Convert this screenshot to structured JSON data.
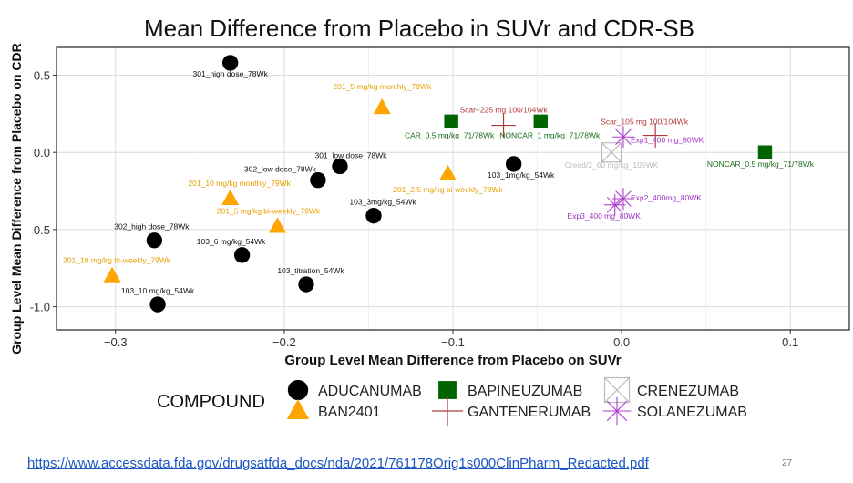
{
  "slide": {
    "url": "https://www.accessdata.fda.gov/drugsatfda_docs/nda/2021/761178Orig1s000ClinPharm_Redacted.pdf",
    "page_number": "27"
  },
  "chart_data": {
    "type": "scatter",
    "title": "Mean Difference from Placebo in SUVr and CDR-SB",
    "xlabel": "Group Level Mean Difference from Placebo on SUVr",
    "ylabel": "Group Level Mean Difference from Placebo on CDR",
    "xlim": [
      -0.335,
      0.135
    ],
    "ylim": [
      -1.15,
      0.68
    ],
    "x_ticks": [
      -0.3,
      -0.2,
      -0.1,
      0.0,
      0.1
    ],
    "x_tick_labels": [
      "−0.3",
      "−0.2",
      "−0.1",
      "0.0",
      "0.1"
    ],
    "y_ticks": [
      0.5,
      0.0,
      -0.5,
      -1.0
    ],
    "y_tick_labels": [
      "0.5",
      "0.0",
      "-0.5",
      "-1.0"
    ],
    "grid": true,
    "legend": {
      "title": "COMPOUND",
      "placement": "bottom",
      "entries": [
        {
          "name": "ADUCANUMAB",
          "shape": "circle",
          "color": "#000000"
        },
        {
          "name": "BAN2401",
          "shape": "triangle",
          "color": "#FFA500"
        },
        {
          "name": "BAPINEUZUMAB",
          "shape": "square",
          "color": "#006400"
        },
        {
          "name": "GANTENERUMAB",
          "shape": "plus",
          "color": "#B03A3A"
        },
        {
          "name": "CRENEZUMAB",
          "shape": "boxx",
          "color": "#BBBBBB"
        },
        {
          "name": "SOLANEZUMAB",
          "shape": "star",
          "color": "#B040D0"
        }
      ]
    },
    "series": [
      {
        "name": "ADUCANUMAB",
        "shape": "circle",
        "color": "#000000",
        "label_color": "#111111",
        "points": [
          {
            "x": -0.232,
            "y": 0.58,
            "label": "301_high dose_78Wk",
            "anchor": "middle",
            "dx": 0,
            "dy": 15
          },
          {
            "x": -0.167,
            "y": -0.09,
            "label": "301_low dose_78Wk",
            "anchor": "middle",
            "dx": 12,
            "dy": -9
          },
          {
            "x": -0.18,
            "y": -0.18,
            "label": "302_low dose_78Wk",
            "anchor": "end",
            "dx": -2,
            "dy": -9
          },
          {
            "x": -0.147,
            "y": -0.41,
            "label": "103_3mg/kg_54Wk",
            "anchor": "middle",
            "dx": 10,
            "dy": -12
          },
          {
            "x": -0.064,
            "y": -0.075,
            "label": "103_1mg/kg_54Wk",
            "anchor": "middle",
            "dx": 8,
            "dy": 15
          },
          {
            "x": -0.277,
            "y": -0.57,
            "label": "302_high dose_78Wk",
            "anchor": "middle",
            "dx": -3,
            "dy": -12
          },
          {
            "x": -0.225,
            "y": -0.665,
            "label": "103_6 mg/kg_54Wk",
            "anchor": "middle",
            "dx": -12,
            "dy": -12
          },
          {
            "x": -0.187,
            "y": -0.855,
            "label": "103_titration_54Wk",
            "anchor": "middle",
            "dx": 5,
            "dy": -12
          },
          {
            "x": -0.275,
            "y": -0.985,
            "label": "103_10 mg/kg_54Wk",
            "anchor": "middle",
            "dx": 0,
            "dy": -12
          }
        ]
      },
      {
        "name": "BAN2401",
        "shape": "triangle",
        "color": "#FFA500",
        "label_color": "#E8A000",
        "points": [
          {
            "x": -0.142,
            "y": 0.29,
            "label": "201_5 mg/kg monthly_78Wk",
            "anchor": "middle",
            "dx": 0,
            "dy": -20
          },
          {
            "x": -0.103,
            "y": -0.14,
            "label": "201_2.5 mg/kg bi-weekly_78Wk",
            "anchor": "middle",
            "dx": 0,
            "dy": 20
          },
          {
            "x": -0.232,
            "y": -0.3,
            "label": "201_10 mg/kg monthly_79Wk",
            "anchor": "middle",
            "dx": 10,
            "dy": -14
          },
          {
            "x": -0.204,
            "y": -0.48,
            "label": "201_5 mg/kg bi-weekly_79Wk",
            "anchor": "middle",
            "dx": -10,
            "dy": -14
          },
          {
            "x": -0.302,
            "y": -0.8,
            "label": "201_10 mg/kg bi-weekly_79Wk",
            "anchor": "middle",
            "dx": 5,
            "dy": -14
          }
        ]
      },
      {
        "name": "BAPINEUZUMAB",
        "shape": "square",
        "color": "#006400",
        "label_color": "#1A6B1A",
        "points": [
          {
            "x": -0.101,
            "y": 0.2,
            "label": "CAR_0.5 mg/kg_71/78Wk",
            "anchor": "middle",
            "dx": -2,
            "dy": 18
          },
          {
            "x": -0.048,
            "y": 0.2,
            "label": "NONCAR_1 mg/kg_71/78Wk",
            "anchor": "middle",
            "dx": 10,
            "dy": 18
          },
          {
            "x": 0.085,
            "y": 0.0,
            "label": "NONCAR_0.5 mg/kg_71/78Wk",
            "anchor": "middle",
            "dx": -5,
            "dy": 16
          }
        ]
      },
      {
        "name": "GANTENERUMAB",
        "shape": "plus",
        "color": "#B03A3A",
        "label_color": "#B03A3A",
        "points": [
          {
            "x": -0.07,
            "y": 0.175,
            "label": "Scar+225 mg 100/104Wk",
            "anchor": "middle",
            "dx": 0,
            "dy": -14
          },
          {
            "x": 0.02,
            "y": 0.11,
            "label": "Scar_105 mg 100/104Wk",
            "anchor": "middle",
            "dx": -12,
            "dy": -12
          }
        ]
      },
      {
        "name": "CRENEZUMAB",
        "shape": "boxx",
        "color": "#BBBBBB",
        "label_color": "#BBBBBB",
        "points": [
          {
            "x": -0.006,
            "y": 0.0,
            "label": "Cread/2_60 mg/kg_105WK",
            "anchor": "middle",
            "dx": 0,
            "dy": 17
          }
        ]
      },
      {
        "name": "SOLANEZUMAB",
        "shape": "star",
        "color": "#B040D0",
        "label_color": "#A030C8",
        "points": [
          {
            "x": 0.001,
            "y": 0.1,
            "label": "Exp1_400 mg_80WK",
            "anchor": "start",
            "dx": 8,
            "dy": 6
          },
          {
            "x": 0.001,
            "y": -0.3,
            "label": "Exp2_400mg_80WK",
            "anchor": "start",
            "dx": 8,
            "dy": 2
          },
          {
            "x": -0.004,
            "y": -0.34,
            "label": "Exp3_400 mg_80WK",
            "anchor": "middle",
            "dx": -12,
            "dy": 15
          }
        ]
      }
    ]
  }
}
